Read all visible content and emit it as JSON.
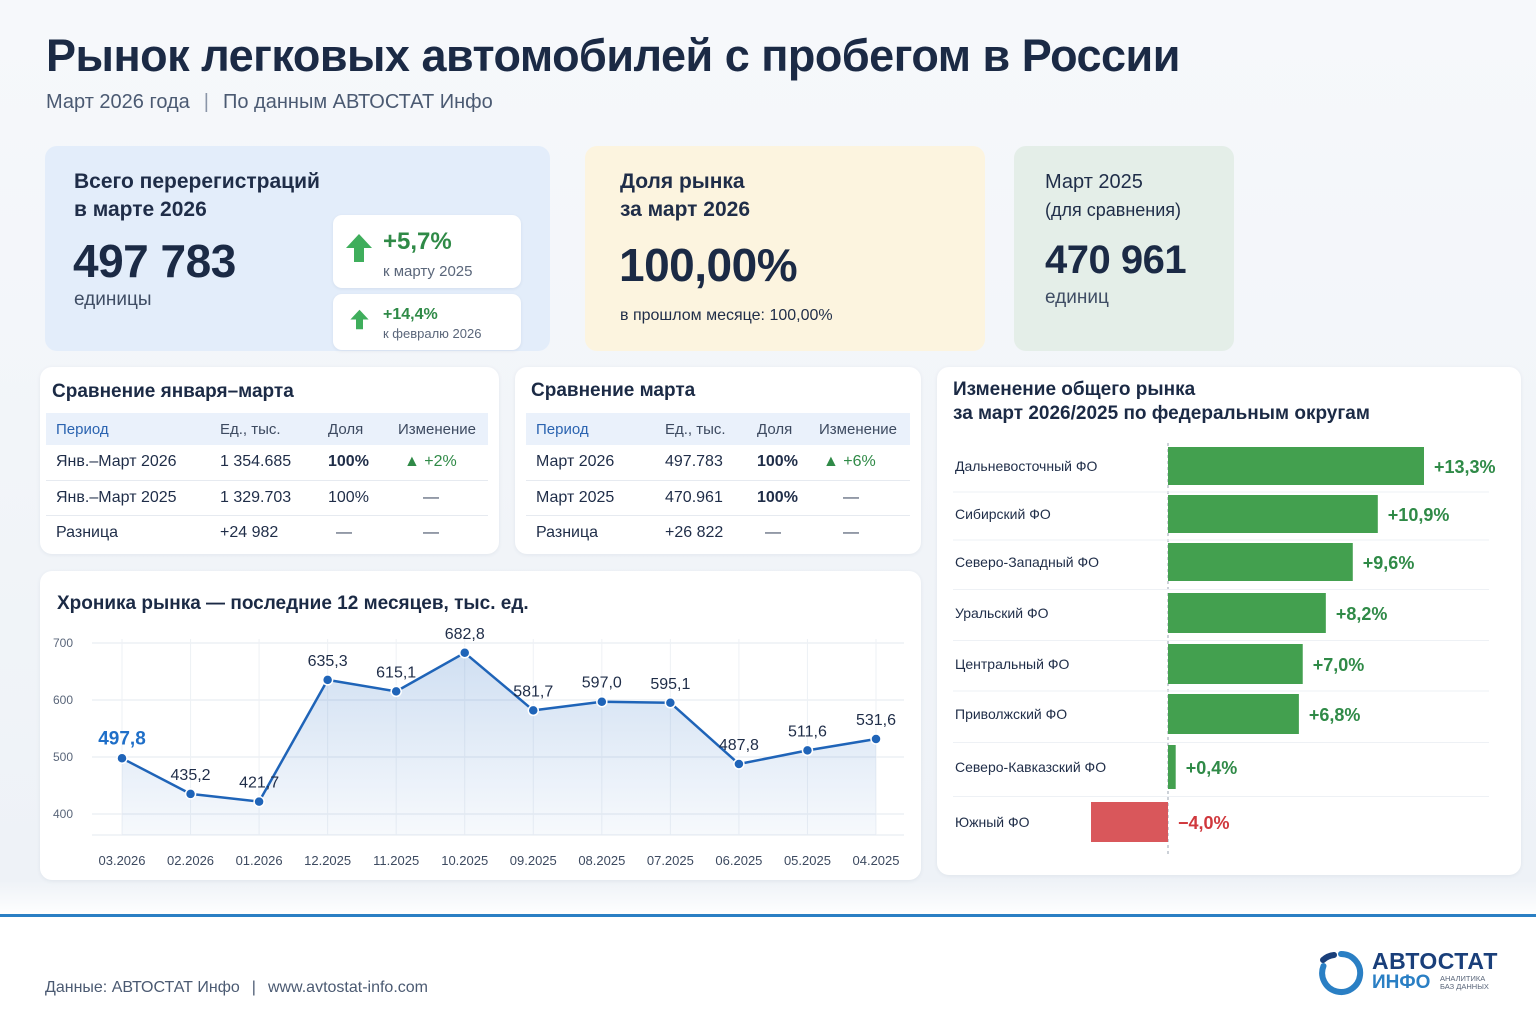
{
  "header": {
    "title": "Рынок легковых автомобилей с пробегом в России",
    "period": "Март 2026 года",
    "source": "По данным АВТОСТАТ Инфо"
  },
  "kpi": {
    "total": {
      "label_line1": "Всего перерегистраций",
      "label_line2": "в марте 2026",
      "value": "497 783",
      "unit": "единицы",
      "change1_pct": "+5,7%",
      "change1_label": "к марту 2025",
      "change2_pct": "+14,4%",
      "change2_label": "к февралю 2026"
    },
    "share": {
      "label_line1": "Доля рынка",
      "label_line2": "за март 2026",
      "value": "100,00%",
      "prev": "в прошлом месяце: 100,00%"
    },
    "prev_year": {
      "label_line1": "Март 2025",
      "label_line2": "(для сравнения)",
      "value": "470 961",
      "unit": "единиц"
    }
  },
  "table_q1": {
    "title": "Сравнение января–марта",
    "headers": [
      "Период",
      "Ед., тыс.",
      "Доля",
      "Изменение"
    ],
    "rows": [
      [
        "Янв.–Март 2026",
        "1 354.685",
        "100%",
        "▲ +2%"
      ],
      [
        "Янв.–Март 2025",
        "1 329.703",
        "100%",
        "—"
      ],
      [
        "Разница",
        "+24 982",
        "—",
        "—"
      ]
    ]
  },
  "table_march": {
    "title": "Сравнение марта",
    "headers": [
      "Период",
      "Ед., тыс.",
      "Доля",
      "Изменение"
    ],
    "rows": [
      [
        "Март 2026",
        "497.783",
        "100%",
        "▲ +6%"
      ],
      [
        "Март 2025",
        "470.961",
        "100%",
        "—"
      ],
      [
        "Разница",
        "+26 822",
        "—",
        "—"
      ]
    ]
  },
  "colors": {
    "accent_blue": "#1f64b8",
    "positive": "#43a04f",
    "negative": "#d9575b",
    "highlight_label": "#1f6fc8"
  },
  "chart_data": [
    {
      "type": "line",
      "title": "Хроника рынка — последние 12 месяцев, тыс. ед.",
      "x": [
        "03.2026",
        "02.2026",
        "01.2026",
        "12.2025",
        "11.2025",
        "10.2025",
        "09.2025",
        "08.2025",
        "07.2025",
        "06.2025",
        "05.2025",
        "04.2025"
      ],
      "values": [
        497.8,
        435.2,
        421.7,
        635.3,
        615.1,
        682.8,
        581.7,
        597.0,
        595.1,
        487.8,
        511.6,
        531.6
      ],
      "labels": [
        "497,8",
        "435,2",
        "421,7",
        "635,3",
        "615,1",
        "682,8",
        "581,7",
        "597,0",
        "595,1",
        "487,8",
        "511,6",
        "531,6"
      ],
      "yticks": [
        "400",
        "500",
        "600",
        "700"
      ],
      "ylim": [
        400,
        700
      ],
      "grid": true
    },
    {
      "type": "bar",
      "orientation": "horizontal",
      "title_line1": "Изменение общего рынка",
      "title_line2": "за март 2026/2025 по федеральным округам",
      "categories": [
        "Дальневосточный ФО",
        "Сибирский ФО",
        "Северо-Западный ФО",
        "Уральский ФО",
        "Центральный ФО",
        "Приволжский ФО",
        "Северо-Кавказский ФО",
        "Южный ФО"
      ],
      "values": [
        13.3,
        10.9,
        9.6,
        8.2,
        7.0,
        6.8,
        0.4,
        -4.0
      ],
      "labels": [
        "+13,3%",
        "+10,9%",
        "+9,6%",
        "+8,2%",
        "+7,0%",
        "+6,8%",
        "+0,4%",
        "−4,0%"
      ]
    }
  ],
  "footer": {
    "source": "Данные: АВТОСТАТ Инфо",
    "url": "www.avtostat-info.com",
    "logo_main": "АВТОСТАТ",
    "logo_sub": "ИНФО",
    "logo_tag": "Аналитика баз данных"
  }
}
